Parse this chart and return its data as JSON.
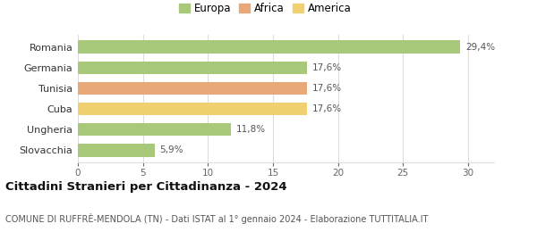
{
  "categories": [
    "Slovacchia",
    "Ungheria",
    "Cuba",
    "Tunisia",
    "Germania",
    "Romania"
  ],
  "values": [
    5.9,
    11.8,
    17.6,
    17.6,
    17.6,
    29.4
  ],
  "labels": [
    "5,9%",
    "11,8%",
    "17,6%",
    "17,6%",
    "17,6%",
    "29,4%"
  ],
  "bar_colors": [
    "#a8c87a",
    "#a8c87a",
    "#f0d070",
    "#e8a878",
    "#a8c87a",
    "#a8c87a"
  ],
  "legend_items": [
    {
      "label": "Europa",
      "color": "#a8c87a"
    },
    {
      "label": "Africa",
      "color": "#e8a878"
    },
    {
      "label": "America",
      "color": "#f0d070"
    }
  ],
  "xlim": [
    0,
    32
  ],
  "xticks": [
    0,
    5,
    10,
    15,
    20,
    25,
    30
  ],
  "title": "Cittadini Stranieri per Cittadinanza - 2024",
  "subtitle": "COMUNE DI RUFFRÈ-MENDOLA (TN) - Dati ISTAT al 1° gennaio 2024 - Elaborazione TUTTITALIA.IT",
  "background_color": "#ffffff",
  "grid_color": "#dddddd",
  "label_fontsize": 7.5,
  "title_fontsize": 9.5,
  "subtitle_fontsize": 7.0,
  "ytick_fontsize": 8.0,
  "xtick_fontsize": 7.5,
  "legend_fontsize": 8.5
}
